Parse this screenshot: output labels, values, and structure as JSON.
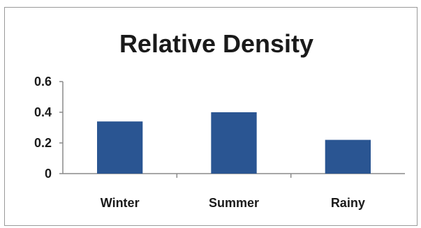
{
  "chart_data": {
    "type": "bar",
    "title": "Relative Density",
    "categories": [
      "Winter",
      "Summer",
      "Rainy"
    ],
    "values": [
      0.34,
      0.4,
      0.22
    ],
    "ylim": [
      0,
      0.6
    ],
    "yticks": [
      "0",
      "0.2",
      "0.4",
      "0.6"
    ],
    "ytick_values": [
      0,
      0.2,
      0.4,
      0.6
    ],
    "xlabel": "",
    "ylabel": "",
    "grid": false,
    "legend": "none",
    "bar_color": "#2a5592"
  }
}
